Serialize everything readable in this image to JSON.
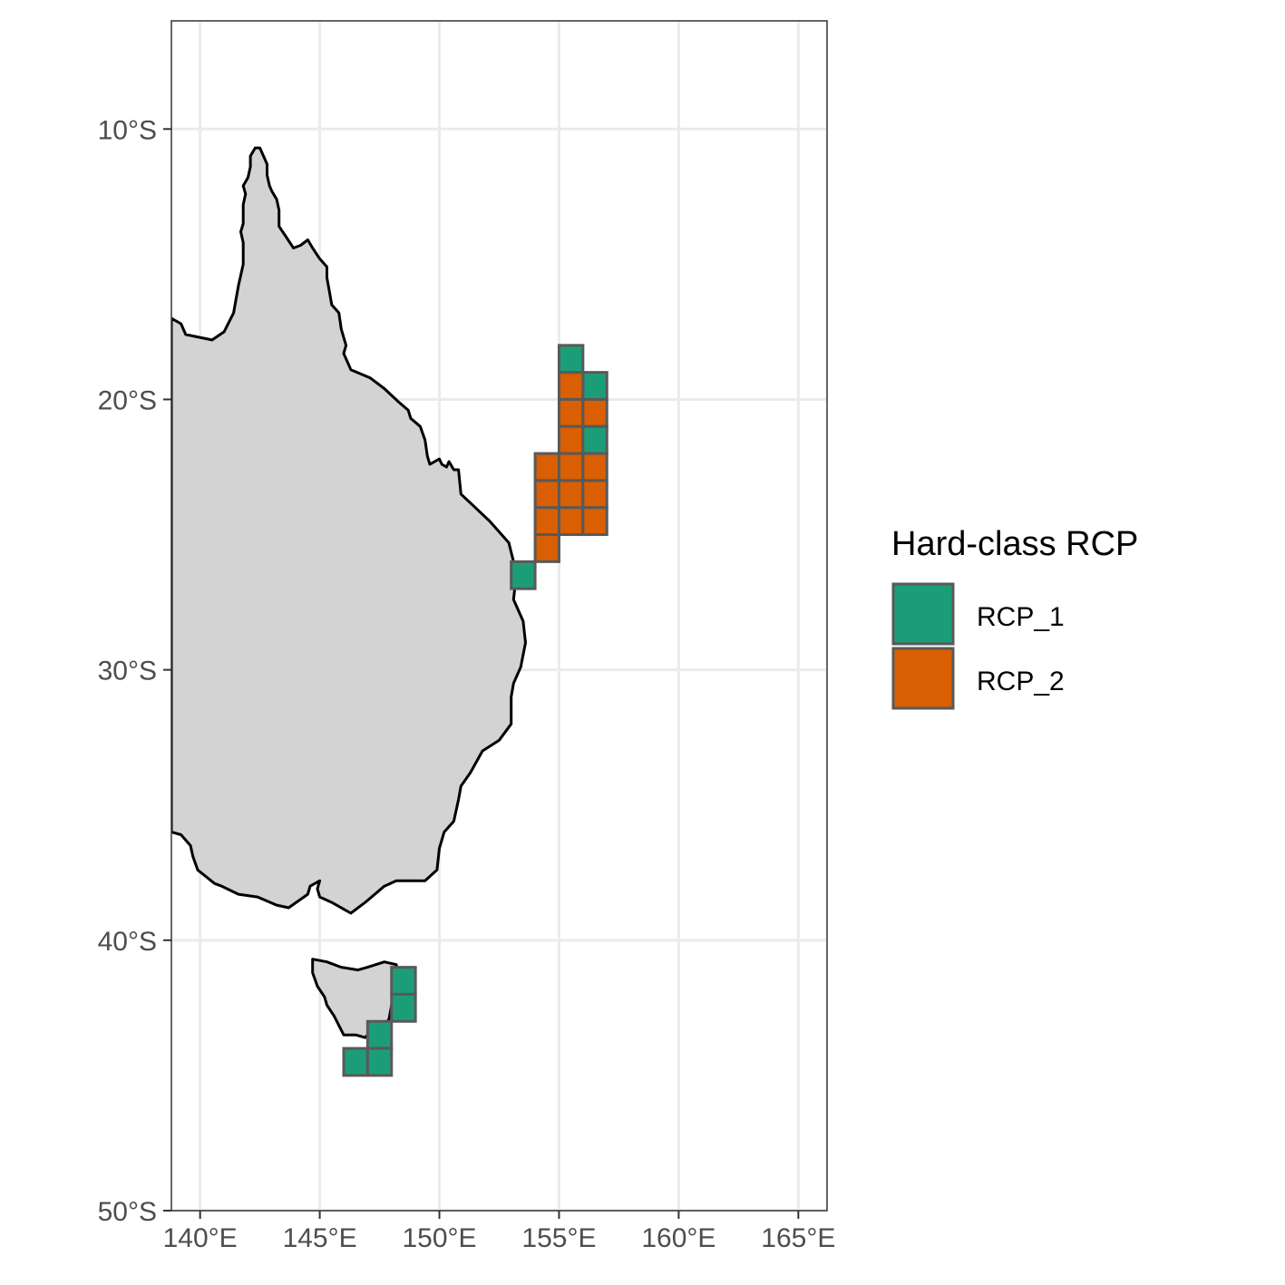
{
  "legend": {
    "title": "Hard-class RCP",
    "items": [
      {
        "label": "RCP_1",
        "color": "#1b9e77"
      },
      {
        "label": "RCP_2",
        "color": "#d95f02"
      }
    ]
  },
  "axes": {
    "x_ticks": [
      {
        "value": 140,
        "label": "140°E"
      },
      {
        "value": 145,
        "label": "145°E"
      },
      {
        "value": 150,
        "label": "150°E"
      },
      {
        "value": 155,
        "label": "155°E"
      },
      {
        "value": 160,
        "label": "160°E"
      },
      {
        "value": 165,
        "label": "165°E"
      }
    ],
    "y_ticks": [
      {
        "value": -10,
        "label": "10°S"
      },
      {
        "value": -20,
        "label": "20°S"
      },
      {
        "value": -30,
        "label": "30°S"
      },
      {
        "value": -40,
        "label": "40°S"
      },
      {
        "value": -50,
        "label": "50°S"
      }
    ],
    "xlim": [
      138.8,
      166.2
    ],
    "ylim": [
      -50,
      -6
    ]
  },
  "colors": {
    "land": "#d3d3d3",
    "coast": "#000000",
    "cell_border": "#595959",
    "grid": "#ebebeb"
  },
  "chart_data": {
    "type": "map-grid",
    "cell_size_deg": 1,
    "cells": [
      {
        "lon": 155.5,
        "lat": -18.5,
        "class": "RCP_1"
      },
      {
        "lon": 156.5,
        "lat": -19.5,
        "class": "RCP_1"
      },
      {
        "lon": 155.5,
        "lat": -19.5,
        "class": "RCP_2"
      },
      {
        "lon": 155.5,
        "lat": -20.5,
        "class": "RCP_2"
      },
      {
        "lon": 156.5,
        "lat": -20.5,
        "class": "RCP_2"
      },
      {
        "lon": 155.5,
        "lat": -21.5,
        "class": "RCP_2"
      },
      {
        "lon": 156.5,
        "lat": -21.5,
        "class": "RCP_1"
      },
      {
        "lon": 154.5,
        "lat": -22.5,
        "class": "RCP_2"
      },
      {
        "lon": 155.5,
        "lat": -22.5,
        "class": "RCP_2"
      },
      {
        "lon": 156.5,
        "lat": -22.5,
        "class": "RCP_2"
      },
      {
        "lon": 154.5,
        "lat": -23.5,
        "class": "RCP_2"
      },
      {
        "lon": 155.5,
        "lat": -23.5,
        "class": "RCP_2"
      },
      {
        "lon": 156.5,
        "lat": -23.5,
        "class": "RCP_2"
      },
      {
        "lon": 154.5,
        "lat": -24.5,
        "class": "RCP_2"
      },
      {
        "lon": 155.5,
        "lat": -24.5,
        "class": "RCP_2"
      },
      {
        "lon": 156.5,
        "lat": -24.5,
        "class": "RCP_2"
      },
      {
        "lon": 154.5,
        "lat": -25.5,
        "class": "RCP_2"
      },
      {
        "lon": 153.5,
        "lat": -26.5,
        "class": "RCP_1"
      },
      {
        "lon": 148.5,
        "lat": -41.5,
        "class": "RCP_1"
      },
      {
        "lon": 148.5,
        "lat": -42.5,
        "class": "RCP_1"
      },
      {
        "lon": 147.5,
        "lat": -43.5,
        "class": "RCP_1"
      },
      {
        "lon": 146.5,
        "lat": -44.5,
        "class": "RCP_1"
      },
      {
        "lon": 147.5,
        "lat": -44.5,
        "class": "RCP_1"
      }
    ],
    "mainland_outline": [
      [
        138.8,
        -17.0
      ],
      [
        139.2,
        -17.2
      ],
      [
        139.4,
        -17.6
      ],
      [
        140.5,
        -17.8
      ],
      [
        141.0,
        -17.5
      ],
      [
        141.4,
        -16.8
      ],
      [
        141.6,
        -15.8
      ],
      [
        141.8,
        -15.0
      ],
      [
        141.8,
        -14.2
      ],
      [
        141.7,
        -13.8
      ],
      [
        141.8,
        -13.5
      ],
      [
        141.8,
        -12.8
      ],
      [
        141.9,
        -12.4
      ],
      [
        141.8,
        -12.1
      ],
      [
        142.0,
        -11.8
      ],
      [
        142.1,
        -11.4
      ],
      [
        142.1,
        -11.0
      ],
      [
        142.3,
        -10.7
      ],
      [
        142.5,
        -10.7
      ],
      [
        142.7,
        -11.1
      ],
      [
        142.8,
        -11.3
      ],
      [
        142.8,
        -11.7
      ],
      [
        142.9,
        -12.1
      ],
      [
        143.0,
        -12.3
      ],
      [
        143.2,
        -12.6
      ],
      [
        143.3,
        -13.0
      ],
      [
        143.3,
        -13.6
      ],
      [
        143.6,
        -14.0
      ],
      [
        143.9,
        -14.4
      ],
      [
        144.2,
        -14.3
      ],
      [
        144.5,
        -14.1
      ],
      [
        144.7,
        -14.4
      ],
      [
        145.0,
        -14.8
      ],
      [
        145.3,
        -15.1
      ],
      [
        145.3,
        -15.5
      ],
      [
        145.4,
        -16.0
      ],
      [
        145.5,
        -16.5
      ],
      [
        145.8,
        -16.8
      ],
      [
        145.9,
        -17.4
      ],
      [
        146.1,
        -18.0
      ],
      [
        146.0,
        -18.3
      ],
      [
        146.3,
        -18.9
      ],
      [
        147.1,
        -19.2
      ],
      [
        147.7,
        -19.6
      ],
      [
        148.3,
        -20.1
      ],
      [
        148.7,
        -20.4
      ],
      [
        148.8,
        -20.7
      ],
      [
        149.2,
        -21.0
      ],
      [
        149.4,
        -21.5
      ],
      [
        149.5,
        -22.1
      ],
      [
        149.6,
        -22.4
      ],
      [
        150.0,
        -22.2
      ],
      [
        150.1,
        -22.4
      ],
      [
        150.3,
        -22.5
      ],
      [
        150.4,
        -22.3
      ],
      [
        150.6,
        -22.6
      ],
      [
        150.8,
        -22.6
      ],
      [
        150.9,
        -23.5
      ],
      [
        151.5,
        -24.0
      ],
      [
        152.1,
        -24.5
      ],
      [
        152.9,
        -25.3
      ],
      [
        153.1,
        -26.0
      ],
      [
        153.2,
        -26.6
      ],
      [
        153.1,
        -27.4
      ],
      [
        153.5,
        -28.2
      ],
      [
        153.6,
        -29.0
      ],
      [
        153.4,
        -29.9
      ],
      [
        153.1,
        -30.5
      ],
      [
        153.0,
        -31.0
      ],
      [
        153.0,
        -32.0
      ],
      [
        152.5,
        -32.6
      ],
      [
        151.8,
        -33.0
      ],
      [
        151.3,
        -33.8
      ],
      [
        150.9,
        -34.3
      ],
      [
        150.8,
        -34.8
      ],
      [
        150.6,
        -35.6
      ],
      [
        150.2,
        -36.0
      ],
      [
        150.0,
        -36.6
      ],
      [
        149.9,
        -37.4
      ],
      [
        149.4,
        -37.8
      ],
      [
        148.2,
        -37.8
      ],
      [
        147.7,
        -38.0
      ],
      [
        146.9,
        -38.6
      ],
      [
        146.3,
        -39.0
      ],
      [
        145.5,
        -38.6
      ],
      [
        145.0,
        -38.4
      ],
      [
        144.9,
        -38.1
      ],
      [
        145.0,
        -37.8
      ],
      [
        144.6,
        -38.0
      ],
      [
        144.5,
        -38.3
      ],
      [
        143.7,
        -38.8
      ],
      [
        143.2,
        -38.7
      ],
      [
        142.4,
        -38.4
      ],
      [
        141.6,
        -38.3
      ],
      [
        140.9,
        -38.0
      ],
      [
        140.6,
        -37.9
      ],
      [
        139.9,
        -37.4
      ],
      [
        139.7,
        -36.9
      ],
      [
        139.6,
        -36.5
      ],
      [
        139.2,
        -36.1
      ],
      [
        138.8,
        -36.0
      ]
    ],
    "tasmania_outline": [
      [
        144.7,
        -40.7
      ],
      [
        145.3,
        -40.8
      ],
      [
        145.9,
        -41.0
      ],
      [
        146.6,
        -41.1
      ],
      [
        147.0,
        -41.0
      ],
      [
        147.7,
        -40.8
      ],
      [
        148.2,
        -40.9
      ],
      [
        148.3,
        -41.4
      ],
      [
        148.3,
        -42.0
      ],
      [
        148.0,
        -42.4
      ],
      [
        147.9,
        -42.9
      ],
      [
        147.7,
        -43.2
      ],
      [
        147.3,
        -43.2
      ],
      [
        146.9,
        -43.6
      ],
      [
        146.5,
        -43.5
      ],
      [
        146.0,
        -43.5
      ],
      [
        145.6,
        -42.8
      ],
      [
        145.3,
        -42.4
      ],
      [
        145.2,
        -42.1
      ],
      [
        144.9,
        -41.7
      ],
      [
        144.7,
        -41.2
      ]
    ]
  }
}
